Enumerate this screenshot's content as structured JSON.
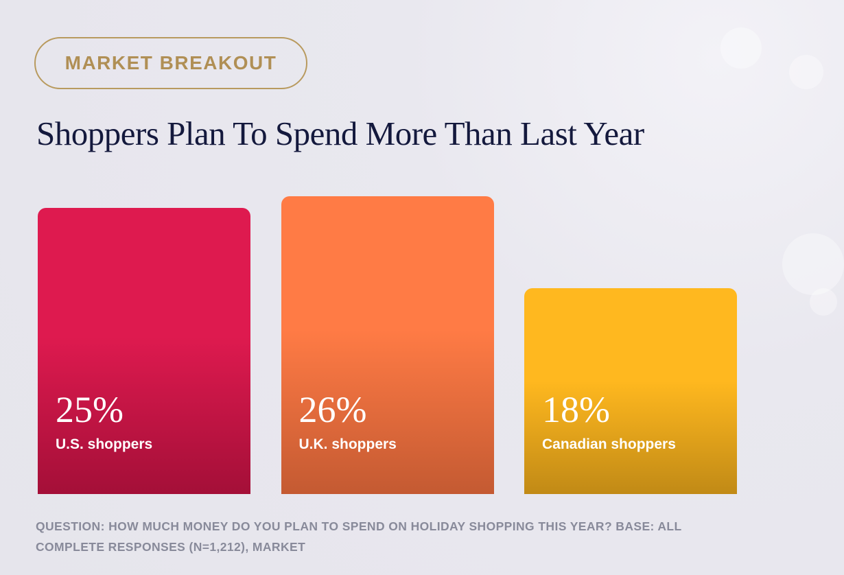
{
  "badge": {
    "label": "MARKET BREAKOUT"
  },
  "chart_data": {
    "type": "bar",
    "title": "Shoppers Plan To Spend More Than Last Year",
    "categories": [
      "U.S. shoppers",
      "U.K. shoppers",
      "Canadian shoppers"
    ],
    "values": [
      25,
      26,
      18
    ],
    "value_labels": [
      "25%",
      "26%",
      "18%"
    ],
    "unit": "%",
    "ylim": [
      0,
      26
    ],
    "grid": false,
    "legend": "none",
    "colors": [
      {
        "top": "#de1a4f",
        "bottom": "#a40f38"
      },
      {
        "top": "#ff7b45",
        "bottom": "#c45a32"
      },
      {
        "top": "#ffb81f",
        "bottom": "#c18a16"
      }
    ]
  },
  "footnote": "QUESTION: HOW MUCH MONEY DO YOU PLAN TO SPEND ON HOLIDAY SHOPPING THIS YEAR? BASE: ALL COMPLETE RESPONSES (N=1,212), MARKET"
}
